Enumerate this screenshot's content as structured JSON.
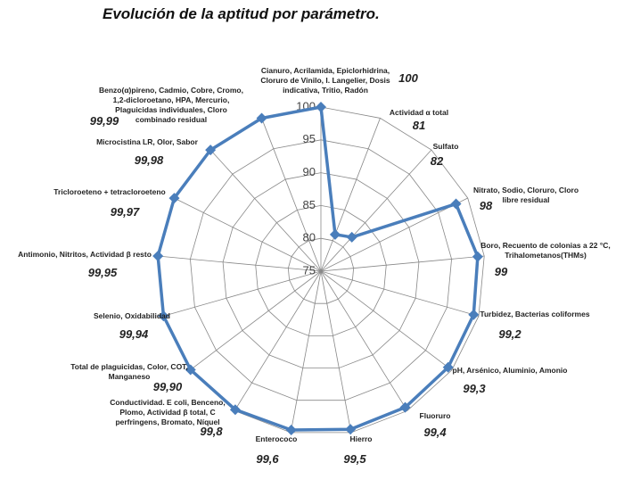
{
  "chart_data": {
    "type": "radar",
    "title": "Evolución de la aptitud por parámetro.",
    "categories": [
      "Cianuro, Acrilamida, Epiclorhidrina, Cloruro de Vinilo, I. Langelier, Dosis indicativa, Tritio, Radón",
      "Actividad α total",
      "Sulfato",
      "Nitrato, Sodio, Cloruro, Cloro libre residual",
      "Boro, Recuento de colonias a 22 °C, Trihalometanos(THMs)",
      "Turbidez, Bacterias coliformes",
      "pH, Arsénico, Aluminio, Amonio",
      "Fluoruro",
      "Hierro",
      "Enterococo",
      "Conductividad. E coli, Benceno, Plomo, Actividad β total, C perfringens, Bromato, Níquel",
      "Total de plaguicidas, Color, COT, Manganeso",
      "Selenio, Oxidabilidad",
      "Antimonio, Nitritos, Actividad β resto",
      "Tricloroeteno + tetracloroeteno",
      "Microcistina LR, Olor, Sabor",
      "Benzo(α)pireno, Cadmio, Cobre, Cromo, 1,2-dicloroetano, HPA, Mercurio, Plaguicidas individuales, Cloro combinado residual"
    ],
    "values": [
      100,
      81,
      82,
      98,
      99,
      99.2,
      99.3,
      99.4,
      99.5,
      99.6,
      99.8,
      99.9,
      99.94,
      99.95,
      99.97,
      99.98,
      99.99
    ],
    "value_labels": [
      "100",
      "81",
      "82",
      "98",
      "99",
      "99,2",
      "99,3",
      "99,4",
      "99,5",
      "99,6",
      "99,8",
      "99,90",
      "99,94",
      "99,95",
      "99,97",
      "99,98",
      "99,99"
    ],
    "color": "#4a7ebb",
    "ylim": [
      75,
      100
    ],
    "yticks": [
      75,
      80,
      85,
      90,
      95,
      100
    ],
    "grid": true
  }
}
